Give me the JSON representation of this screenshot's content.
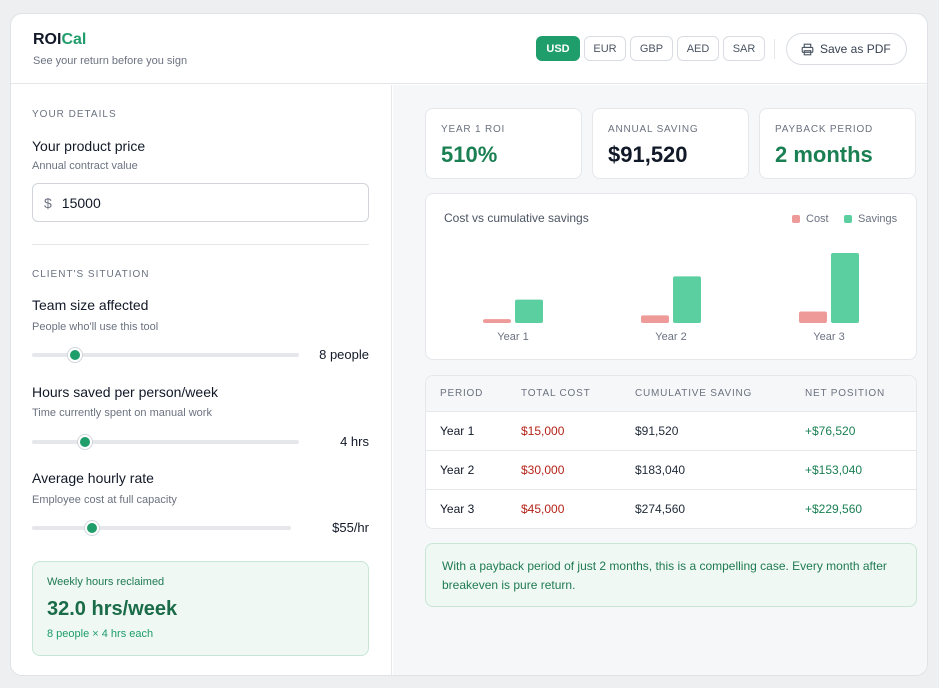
{
  "header": {
    "brand_main": "ROI",
    "brand_accent": "Cal",
    "tagline": "See your return before you sign",
    "currencies": [
      "USD",
      "EUR",
      "GBP",
      "AED",
      "SAR"
    ],
    "active_currency": "USD",
    "save_pdf_label": "Save as PDF"
  },
  "details": {
    "section_title": "YOUR DETAILS",
    "price_label": "Your product price",
    "price_sub": "Annual contract value",
    "price_symbol": "$",
    "price_value": "15000"
  },
  "situation": {
    "section_title": "CLIENT'S SITUATION",
    "sliders": [
      {
        "label": "Team size affected",
        "sub": "People who'll use this tool",
        "display": "8 people",
        "fraction": 0.161
      },
      {
        "label": "Hours saved per person/week",
        "sub": "Time currently spent on manual work",
        "display": "4 hrs",
        "fraction": 0.198
      },
      {
        "label": "Average hourly rate",
        "sub": "Employee cost at full capacity",
        "display": "$55/hr",
        "fraction": 0.231
      }
    ]
  },
  "reclaimed": {
    "title": "Weekly hours reclaimed",
    "value": "32.0 hrs/week",
    "sub": "8 people × 4 hrs each"
  },
  "kpis": [
    {
      "label": "YEAR 1 ROI",
      "value": "510%",
      "color": "#1a7f52"
    },
    {
      "label": "ANNUAL SAVING",
      "value": "$91,520",
      "color": "#111827"
    },
    {
      "label": "PAYBACK PERIOD",
      "value": "2 months",
      "color": "#1a7f52"
    }
  ],
  "chart_data": {
    "type": "bar",
    "title": "Cost vs cumulative savings",
    "categories": [
      "Year 1",
      "Year 2",
      "Year 3"
    ],
    "series": [
      {
        "name": "Cost",
        "values": [
          15000,
          30000,
          45000
        ],
        "color": "#ee9a98"
      },
      {
        "name": "Savings",
        "values": [
          91520,
          183040,
          274560
        ],
        "color": "#5ccfa1"
      }
    ],
    "ylim": [
      0,
      274560
    ],
    "legend": "top-right",
    "grid": false
  },
  "table": {
    "headers": [
      "PERIOD",
      "TOTAL COST",
      "CUMULATIVE SAVING",
      "NET POSITION"
    ],
    "rows": [
      {
        "period": "Year 1",
        "cost": "$15,000",
        "saving": "$91,520",
        "net": "+$76,520"
      },
      {
        "period": "Year 2",
        "cost": "$30,000",
        "saving": "$183,040",
        "net": "+$153,040"
      },
      {
        "period": "Year 3",
        "cost": "$45,000",
        "saving": "$274,560",
        "net": "+$229,560"
      }
    ]
  },
  "note": "With a payback period of just 2 months, this is a compelling case. Every month after breakeven is pure return.",
  "colors": {
    "accent": "#1f9d6a",
    "cost_text": "#b42318",
    "net_text": "#1a7f52"
  }
}
